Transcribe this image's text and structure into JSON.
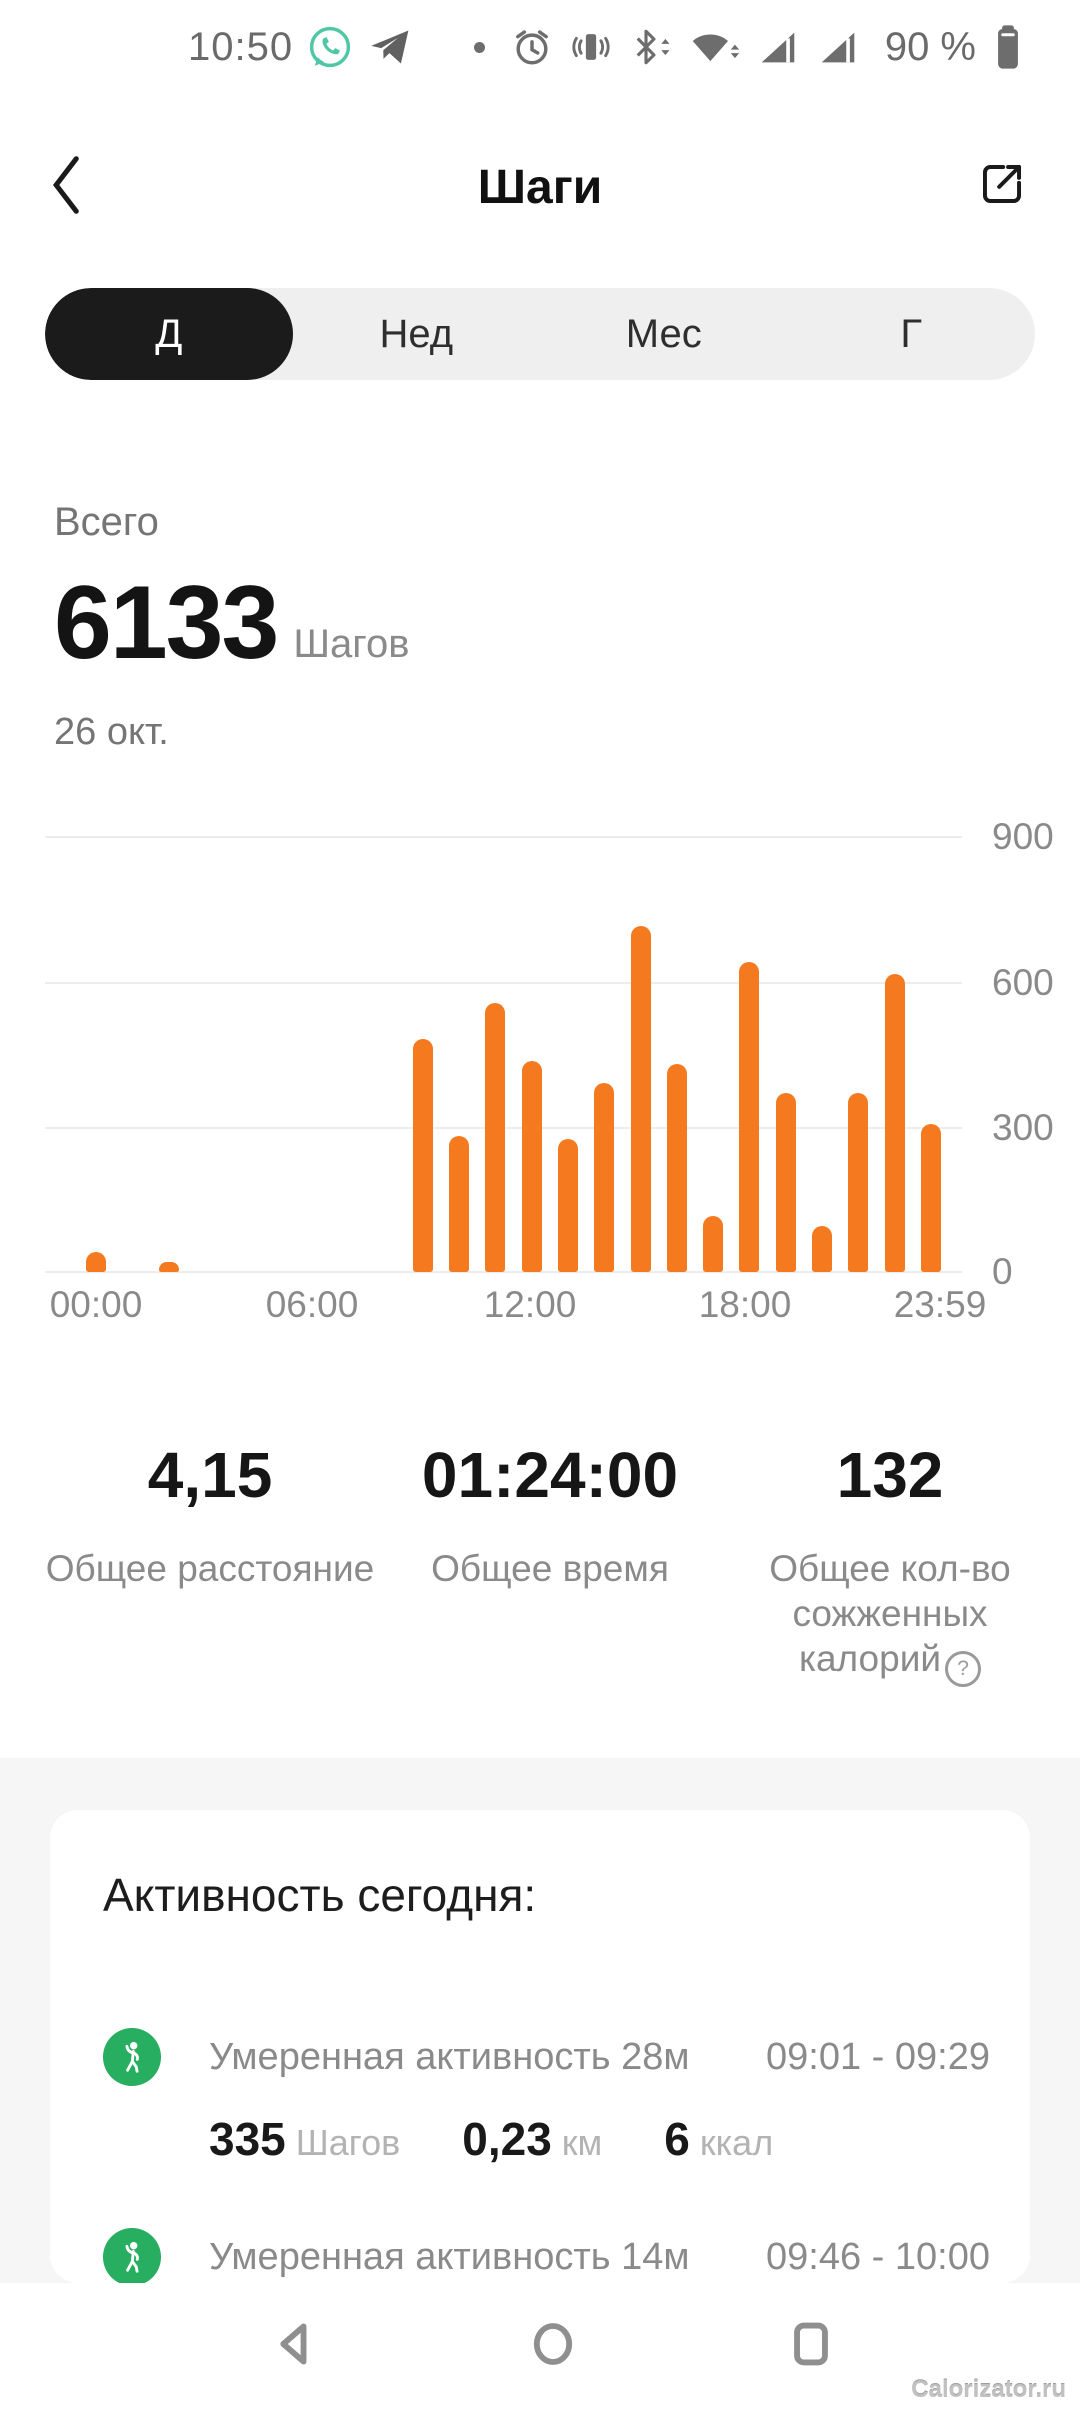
{
  "status_bar": {
    "time": "10:50",
    "battery_text": "90 %"
  },
  "header": {
    "title": "Шаги"
  },
  "tabs": [
    {
      "label": "Д",
      "active": true
    },
    {
      "label": "Нед",
      "active": false
    },
    {
      "label": "Мес",
      "active": false
    },
    {
      "label": "Г",
      "active": false
    }
  ],
  "summary": {
    "caption": "Всего",
    "steps_total": "6133",
    "unit": "Шагов",
    "date": "26 окт."
  },
  "chart_data": {
    "type": "bar",
    "x_axis": "hour of day",
    "xticks": [
      "00:00",
      "06:00",
      "12:00",
      "18:00",
      "23:59"
    ],
    "yticks": [
      "900",
      "600",
      "300",
      "0"
    ],
    "ylim": [
      0,
      900
    ],
    "grid": true,
    "legend": false,
    "bar_color": "#F5791E",
    "points": [
      {
        "hour": 0,
        "steps": 42
      },
      {
        "hour": 2,
        "steps": 21
      },
      {
        "hour": 9,
        "steps": 480
      },
      {
        "hour": 10,
        "steps": 280
      },
      {
        "hour": 11,
        "steps": 555
      },
      {
        "hour": 12,
        "steps": 435
      },
      {
        "hour": 13,
        "steps": 275
      },
      {
        "hour": 14,
        "steps": 390
      },
      {
        "hour": 15,
        "steps": 715
      },
      {
        "hour": 16,
        "steps": 430
      },
      {
        "hour": 17,
        "steps": 115
      },
      {
        "hour": 18,
        "steps": 640
      },
      {
        "hour": 19,
        "steps": 370
      },
      {
        "hour": 20,
        "steps": 95
      },
      {
        "hour": 21,
        "steps": 370
      },
      {
        "hour": 22,
        "steps": 615
      },
      {
        "hour": 23,
        "steps": 305
      }
    ]
  },
  "stats": {
    "distance": {
      "value": "4,15",
      "label": "Общее расстояние"
    },
    "time": {
      "value": "01:24:00",
      "label": "Общее время"
    },
    "calories": {
      "value": "132",
      "label_line1": "Общее кол-во",
      "label_line2": "сожженных",
      "label_line3": "калорий",
      "help": "?"
    }
  },
  "activity": {
    "title": "Активность сегодня:",
    "items": [
      {
        "name": "Умеренная активность 28м",
        "time_range": "09:01 - 09:29",
        "steps": "335",
        "steps_unit": "Шагов",
        "distance": "0,23",
        "distance_unit": "км",
        "calories": "6",
        "calories_unit": "ккал"
      },
      {
        "name": "Умеренная активность 14м",
        "time_range": "09:46 - 10:00"
      }
    ]
  },
  "watermark": "Calorizator.ru",
  "colors": {
    "accent_orange": "#F5791E",
    "activity_green": "#27AE60",
    "tab_active_bg": "#1B1B1B",
    "muted_text": "#8A8A8A"
  }
}
